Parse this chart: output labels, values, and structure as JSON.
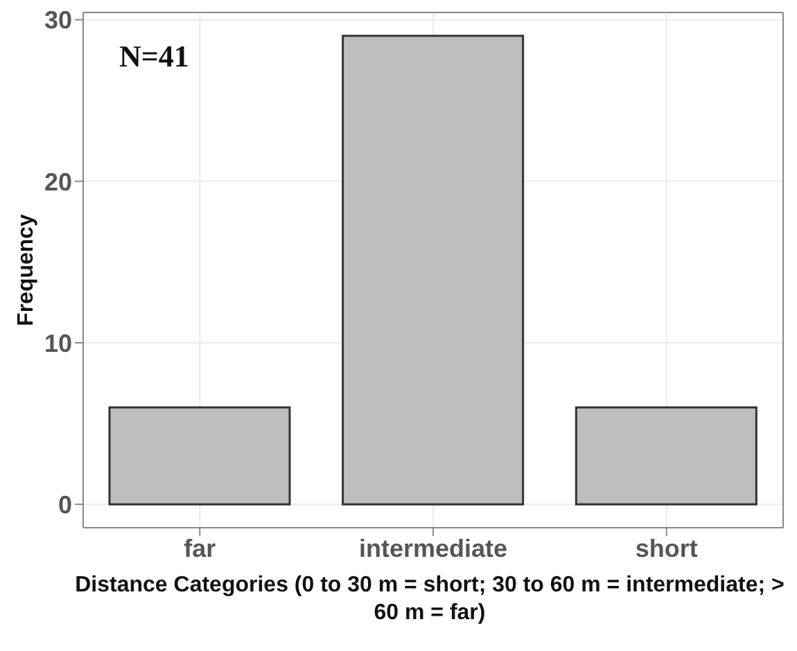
{
  "chart_data": {
    "type": "bar",
    "xlabel": "Distance Categories (0 to 30 m = short; 30 to 60 m = intermediate; > 60 m = far)",
    "ylabel": "Frequency",
    "categories": [
      "far",
      "intermediate",
      "short"
    ],
    "values": [
      6,
      29,
      6
    ],
    "color": "#bebebe",
    "ylim": [
      -1.45,
      30.45
    ],
    "yticks": [
      0,
      10,
      20,
      30
    ],
    "grid": true,
    "annotations": [
      "N=41"
    ]
  }
}
